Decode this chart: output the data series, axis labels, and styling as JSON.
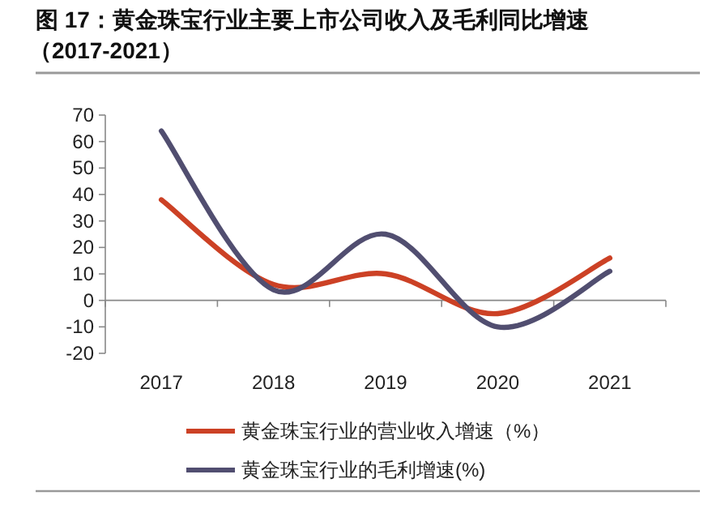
{
  "chart_data": {
    "type": "line",
    "title": "图 17：黄金珠宝行业主要上市公司收入及毛利同比增速（2017-2021）",
    "categories": [
      "2017",
      "2018",
      "2019",
      "2020",
      "2021"
    ],
    "series": [
      {
        "name": "黄金珠宝行业的营业收入增速（%）",
        "color": "#cc4125",
        "values": [
          38,
          6,
          10,
          -5,
          16
        ]
      },
      {
        "name": "黄金珠宝行业的毛利增速(%)",
        "color": "#514e70",
        "values": [
          64,
          4,
          25,
          -10,
          11
        ]
      }
    ],
    "ylim": [
      -20,
      70
    ],
    "yticks": [
      -20,
      -10,
      0,
      10,
      20,
      30,
      40,
      50,
      60,
      70
    ],
    "legend": "bottom",
    "marker": "none",
    "line_style": "solid"
  }
}
